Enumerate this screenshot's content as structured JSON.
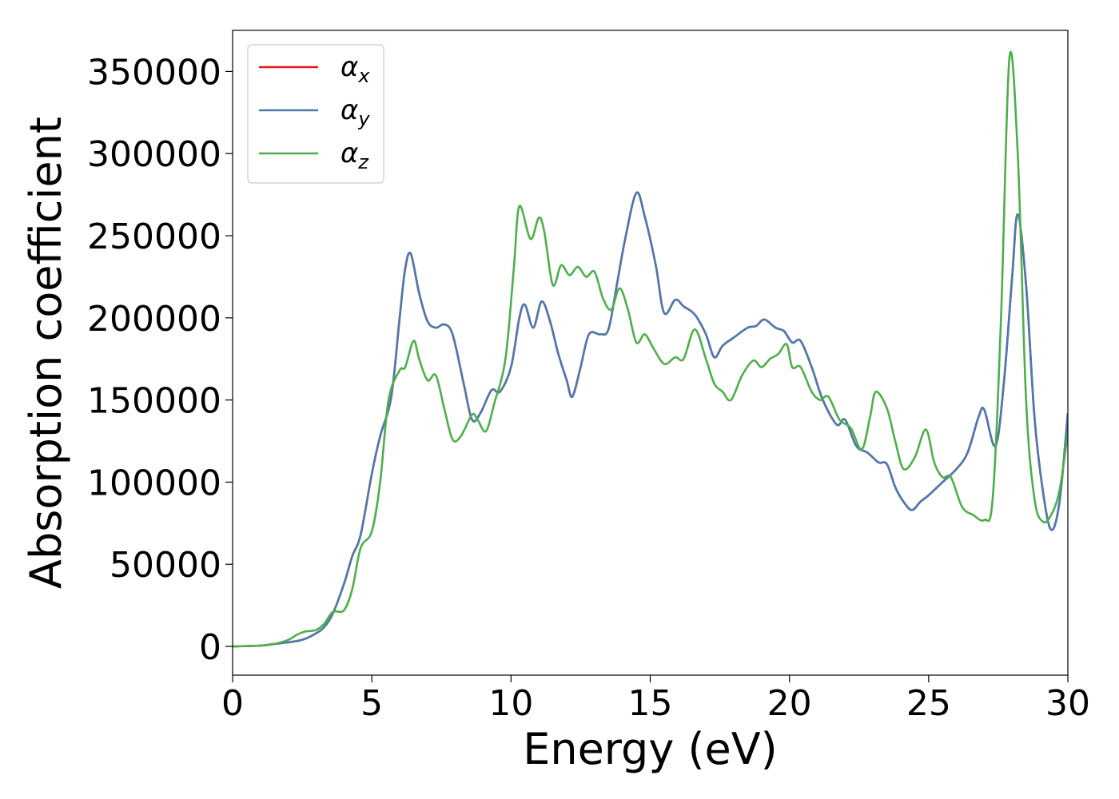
{
  "chart_data": {
    "type": "line",
    "title": "",
    "xlabel": "Energy (eV)",
    "ylabel": "Absorption coefficient",
    "xlim": [
      0,
      30
    ],
    "ylim": [
      -17500,
      375000
    ],
    "xticks": [
      0,
      5,
      10,
      15,
      20,
      25,
      30
    ],
    "yticks": [
      0,
      50000,
      100000,
      150000,
      200000,
      250000,
      300000,
      350000
    ],
    "legend_position": "top-left",
    "grid": false,
    "series": [
      {
        "name": "α_x",
        "legend_symbol": "α",
        "legend_sub": "x",
        "color": "#e41a1c",
        "points": [
          [
            0,
            0
          ],
          [
            1,
            500
          ],
          [
            1.5,
            1500
          ],
          [
            2,
            2500
          ],
          [
            2.5,
            4000
          ],
          [
            3,
            8000
          ],
          [
            3.3,
            12000
          ],
          [
            3.6,
            20000
          ],
          [
            4,
            38000
          ],
          [
            4.3,
            55000
          ],
          [
            4.6,
            68000
          ],
          [
            5,
            105000
          ],
          [
            5.3,
            128000
          ],
          [
            5.7,
            152000
          ],
          [
            6,
            200000
          ],
          [
            6.2,
            230000
          ],
          [
            6.4,
            239000
          ],
          [
            6.7,
            215000
          ],
          [
            7,
            198000
          ],
          [
            7.3,
            194000
          ],
          [
            7.6,
            196000
          ],
          [
            7.9,
            190000
          ],
          [
            8.3,
            160000
          ],
          [
            8.6,
            138000
          ],
          [
            8.9,
            142000
          ],
          [
            9.3,
            156000
          ],
          [
            9.6,
            155000
          ],
          [
            10,
            170000
          ],
          [
            10.3,
            200000
          ],
          [
            10.5,
            208000
          ],
          [
            10.8,
            194000
          ],
          [
            11.1,
            210000
          ],
          [
            11.4,
            198000
          ],
          [
            11.7,
            178000
          ],
          [
            12,
            162000
          ],
          [
            12.2,
            152000
          ],
          [
            12.5,
            170000
          ],
          [
            12.8,
            190000
          ],
          [
            13.2,
            190000
          ],
          [
            13.5,
            193000
          ],
          [
            13.8,
            220000
          ],
          [
            14.1,
            248000
          ],
          [
            14.5,
            276000
          ],
          [
            14.8,
            262000
          ],
          [
            15.2,
            232000
          ],
          [
            15.5,
            203000
          ],
          [
            15.9,
            211000
          ],
          [
            16.2,
            207000
          ],
          [
            16.6,
            202000
          ],
          [
            17,
            190000
          ],
          [
            17.3,
            176000
          ],
          [
            17.6,
            183000
          ],
          [
            18,
            188000
          ],
          [
            18.5,
            194000
          ],
          [
            18.8,
            195000
          ],
          [
            19.1,
            199000
          ],
          [
            19.5,
            194000
          ],
          [
            19.8,
            192000
          ],
          [
            20.1,
            185000
          ],
          [
            20.4,
            186000
          ],
          [
            20.8,
            170000
          ],
          [
            21.2,
            150000
          ],
          [
            21.7,
            135000
          ],
          [
            22,
            138000
          ],
          [
            22.4,
            122000
          ],
          [
            22.8,
            118000
          ],
          [
            23.2,
            112000
          ],
          [
            23.5,
            111000
          ],
          [
            23.8,
            97000
          ],
          [
            24.1,
            88000
          ],
          [
            24.4,
            83000
          ],
          [
            24.7,
            88000
          ],
          [
            25,
            92000
          ],
          [
            25.5,
            100000
          ],
          [
            26,
            108000
          ],
          [
            26.4,
            118000
          ],
          [
            26.8,
            140000
          ],
          [
            27,
            144000
          ],
          [
            27.4,
            122000
          ],
          [
            27.7,
            160000
          ],
          [
            28,
            225000
          ],
          [
            28.2,
            263000
          ],
          [
            28.5,
            220000
          ],
          [
            28.8,
            140000
          ],
          [
            29.1,
            95000
          ],
          [
            29.4,
            71000
          ],
          [
            29.7,
            88000
          ],
          [
            30,
            142000
          ]
        ]
      },
      {
        "name": "α_y",
        "legend_symbol": "α",
        "legend_sub": "y",
        "color": "#4a7ab0",
        "points": [
          [
            0,
            0
          ],
          [
            1,
            500
          ],
          [
            1.5,
            1500
          ],
          [
            2,
            2500
          ],
          [
            2.5,
            4000
          ],
          [
            3,
            8000
          ],
          [
            3.3,
            12000
          ],
          [
            3.6,
            20000
          ],
          [
            4,
            38000
          ],
          [
            4.3,
            55000
          ],
          [
            4.6,
            68000
          ],
          [
            5,
            105000
          ],
          [
            5.3,
            128000
          ],
          [
            5.7,
            152000
          ],
          [
            6,
            200000
          ],
          [
            6.2,
            230000
          ],
          [
            6.4,
            239000
          ],
          [
            6.7,
            215000
          ],
          [
            7,
            198000
          ],
          [
            7.3,
            194000
          ],
          [
            7.6,
            196000
          ],
          [
            7.9,
            190000
          ],
          [
            8.3,
            160000
          ],
          [
            8.6,
            138000
          ],
          [
            8.9,
            142000
          ],
          [
            9.3,
            156000
          ],
          [
            9.6,
            155000
          ],
          [
            10,
            170000
          ],
          [
            10.3,
            200000
          ],
          [
            10.5,
            208000
          ],
          [
            10.8,
            194000
          ],
          [
            11.1,
            210000
          ],
          [
            11.4,
            198000
          ],
          [
            11.7,
            178000
          ],
          [
            12,
            162000
          ],
          [
            12.2,
            152000
          ],
          [
            12.5,
            170000
          ],
          [
            12.8,
            190000
          ],
          [
            13.2,
            190000
          ],
          [
            13.5,
            193000
          ],
          [
            13.8,
            220000
          ],
          [
            14.1,
            248000
          ],
          [
            14.5,
            276000
          ],
          [
            14.8,
            262000
          ],
          [
            15.2,
            232000
          ],
          [
            15.5,
            203000
          ],
          [
            15.9,
            211000
          ],
          [
            16.2,
            207000
          ],
          [
            16.6,
            202000
          ],
          [
            17,
            190000
          ],
          [
            17.3,
            176000
          ],
          [
            17.6,
            183000
          ],
          [
            18,
            188000
          ],
          [
            18.5,
            194000
          ],
          [
            18.8,
            195000
          ],
          [
            19.1,
            199000
          ],
          [
            19.5,
            194000
          ],
          [
            19.8,
            192000
          ],
          [
            20.1,
            185000
          ],
          [
            20.4,
            186000
          ],
          [
            20.8,
            170000
          ],
          [
            21.2,
            150000
          ],
          [
            21.7,
            135000
          ],
          [
            22,
            138000
          ],
          [
            22.4,
            122000
          ],
          [
            22.8,
            118000
          ],
          [
            23.2,
            112000
          ],
          [
            23.5,
            111000
          ],
          [
            23.8,
            97000
          ],
          [
            24.1,
            88000
          ],
          [
            24.4,
            83000
          ],
          [
            24.7,
            88000
          ],
          [
            25,
            92000
          ],
          [
            25.5,
            100000
          ],
          [
            26,
            108000
          ],
          [
            26.4,
            118000
          ],
          [
            26.8,
            140000
          ],
          [
            27,
            144000
          ],
          [
            27.4,
            122000
          ],
          [
            27.7,
            160000
          ],
          [
            28,
            225000
          ],
          [
            28.2,
            263000
          ],
          [
            28.5,
            220000
          ],
          [
            28.8,
            140000
          ],
          [
            29.1,
            95000
          ],
          [
            29.4,
            71000
          ],
          [
            29.7,
            88000
          ],
          [
            30,
            142000
          ]
        ]
      },
      {
        "name": "α_z",
        "legend_symbol": "α",
        "legend_sub": "z",
        "color": "#4daf4a",
        "points": [
          [
            0,
            0
          ],
          [
            1,
            500
          ],
          [
            1.5,
            1500
          ],
          [
            2,
            4000
          ],
          [
            2.3,
            7000
          ],
          [
            2.6,
            9000
          ],
          [
            3,
            10000
          ],
          [
            3.3,
            14000
          ],
          [
            3.6,
            21000
          ],
          [
            4,
            22000
          ],
          [
            4.3,
            35000
          ],
          [
            4.6,
            60000
          ],
          [
            5,
            70000
          ],
          [
            5.3,
            100000
          ],
          [
            5.6,
            150000
          ],
          [
            6,
            168000
          ],
          [
            6.2,
            170000
          ],
          [
            6.5,
            186000
          ],
          [
            6.7,
            175000
          ],
          [
            7,
            162000
          ],
          [
            7.3,
            165000
          ],
          [
            7.6,
            145000
          ],
          [
            7.9,
            126000
          ],
          [
            8.2,
            128000
          ],
          [
            8.6,
            141000
          ],
          [
            8.8,
            138000
          ],
          [
            9.1,
            131000
          ],
          [
            9.4,
            148000
          ],
          [
            9.8,
            175000
          ],
          [
            10.1,
            230000
          ],
          [
            10.3,
            268000
          ],
          [
            10.7,
            248000
          ],
          [
            11,
            261000
          ],
          [
            11.2,
            252000
          ],
          [
            11.5,
            220000
          ],
          [
            11.8,
            232000
          ],
          [
            12.1,
            226000
          ],
          [
            12.4,
            231000
          ],
          [
            12.7,
            225000
          ],
          [
            13,
            228000
          ],
          [
            13.3,
            212000
          ],
          [
            13.6,
            205000
          ],
          [
            13.9,
            218000
          ],
          [
            14.2,
            205000
          ],
          [
            14.5,
            185000
          ],
          [
            14.8,
            190000
          ],
          [
            15.1,
            182000
          ],
          [
            15.5,
            172000
          ],
          [
            15.9,
            176000
          ],
          [
            16.2,
            175000
          ],
          [
            16.6,
            193000
          ],
          [
            17,
            175000
          ],
          [
            17.3,
            160000
          ],
          [
            17.6,
            155000
          ],
          [
            17.9,
            150000
          ],
          [
            18.3,
            165000
          ],
          [
            18.7,
            174000
          ],
          [
            19,
            170000
          ],
          [
            19.3,
            175000
          ],
          [
            19.6,
            178000
          ],
          [
            19.9,
            184000
          ],
          [
            20.1,
            170000
          ],
          [
            20.4,
            170000
          ],
          [
            20.8,
            155000
          ],
          [
            21.1,
            150000
          ],
          [
            21.4,
            152000
          ],
          [
            21.8,
            138000
          ],
          [
            22.2,
            133000
          ],
          [
            22.6,
            120000
          ],
          [
            22.9,
            140000
          ],
          [
            23.1,
            155000
          ],
          [
            23.5,
            145000
          ],
          [
            23.8,
            125000
          ],
          [
            24.1,
            108000
          ],
          [
            24.5,
            115000
          ],
          [
            24.9,
            132000
          ],
          [
            25.2,
            112000
          ],
          [
            25.5,
            103000
          ],
          [
            25.8,
            103000
          ],
          [
            26.2,
            85000
          ],
          [
            26.6,
            80000
          ],
          [
            27,
            77000
          ],
          [
            27.3,
            90000
          ],
          [
            27.6,
            200000
          ],
          [
            27.9,
            358000
          ],
          [
            28.2,
            300000
          ],
          [
            28.5,
            150000
          ],
          [
            28.8,
            90000
          ],
          [
            29.1,
            76000
          ],
          [
            29.4,
            80000
          ],
          [
            29.7,
            95000
          ],
          [
            30,
            130000
          ]
        ]
      }
    ]
  }
}
